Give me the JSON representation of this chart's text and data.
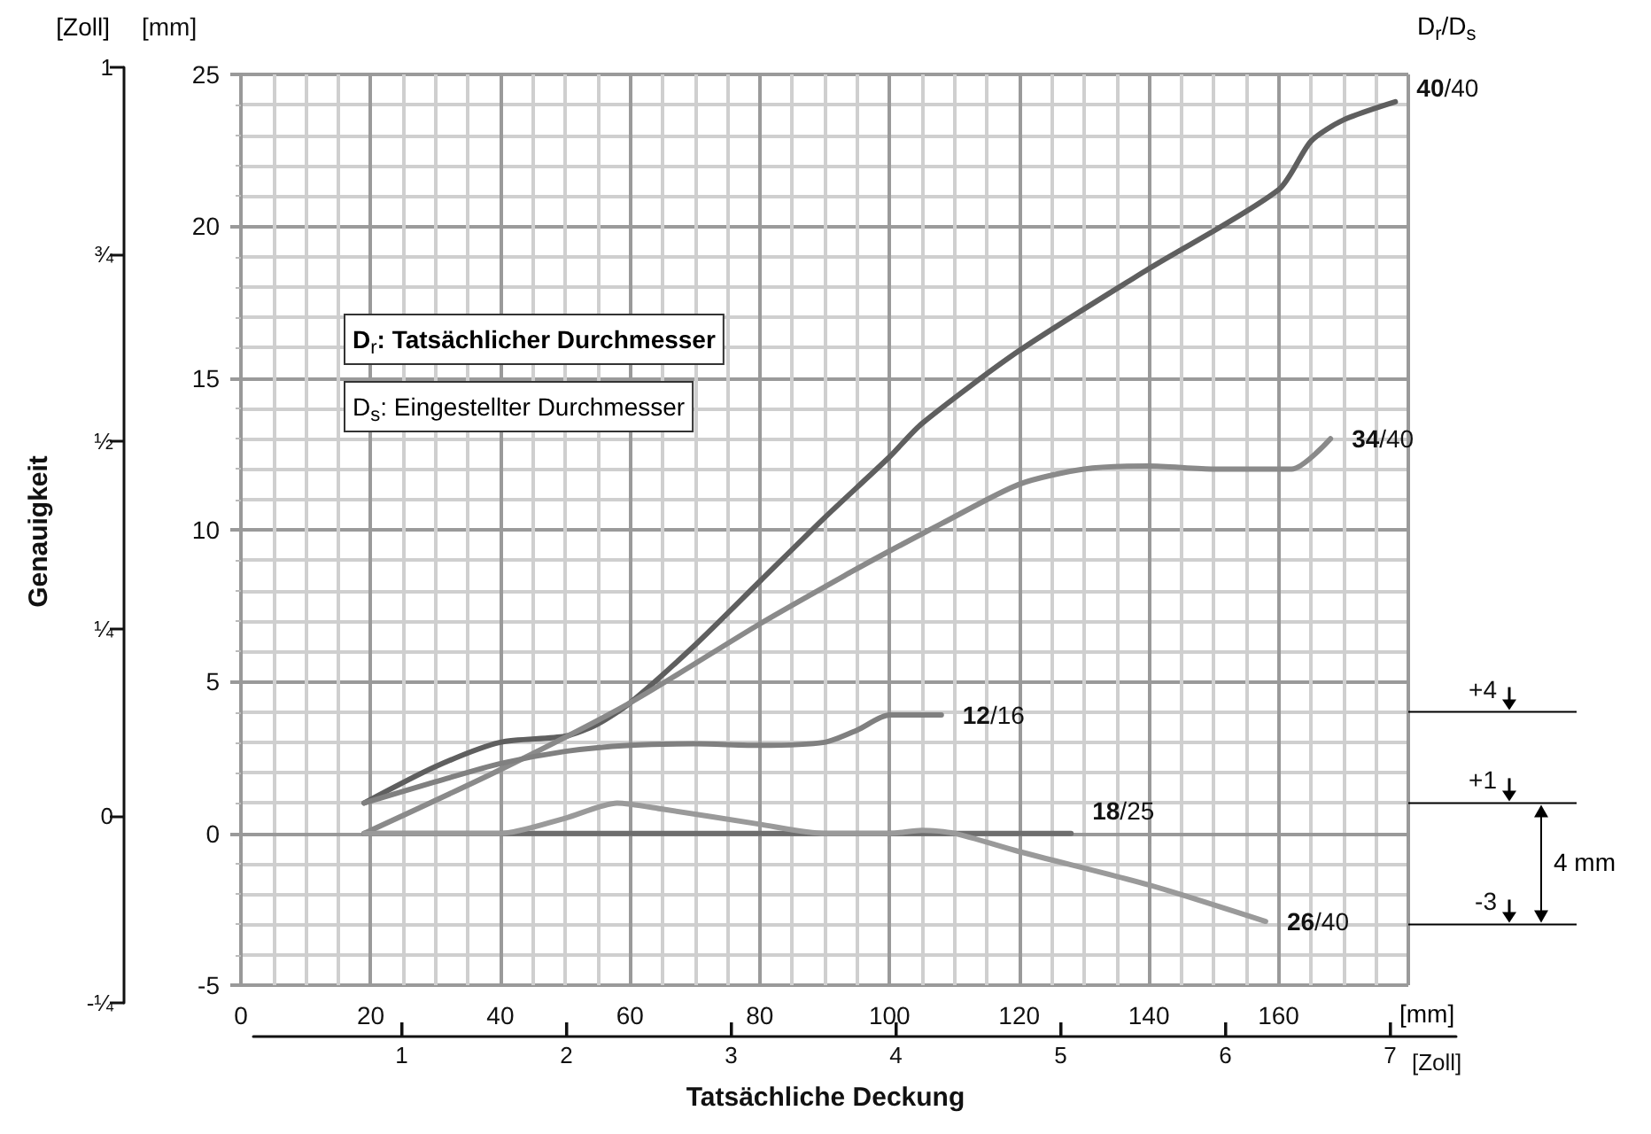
{
  "chart_data": {
    "type": "line",
    "xlabel": "Tatsächliche Deckung",
    "ylabel": "[mm]",
    "x2label": "[Zoll]",
    "y2label": "Genauigkeit",
    "xlim": [
      0,
      180
    ],
    "xticks": [
      0,
      20,
      40,
      60,
      80,
      100,
      120,
      140,
      160
    ],
    "ylim": [
      -5,
      25
    ],
    "yticks": [
      -5,
      0,
      5,
      10,
      15,
      20,
      25
    ],
    "x2lim": [
      0.1,
      7.4
    ],
    "x2ticks": [
      1,
      2,
      3,
      4,
      5,
      6,
      7
    ],
    "y2lim": [
      -0.25,
      1
    ],
    "y2ticks": [
      {
        "value": -0.25,
        "label": "-¼"
      },
      0,
      {
        "value": 0.25,
        "label": "¼"
      },
      {
        "value": 0.5,
        "label": "½"
      },
      {
        "value": 0.75,
        "label": "¾"
      },
      1
    ],
    "grid": true,
    "marker": "none",
    "line_style": "solid",
    "series": [
      {
        "name": "40/40",
        "color": "#5f5f5f",
        "x": [
          19,
          30,
          40,
          50,
          55,
          60,
          70,
          80,
          90,
          100,
          105,
          120,
          140,
          160,
          165,
          170,
          178
        ],
        "values": [
          1,
          2.2,
          3,
          3.2,
          3.6,
          4.3,
          6.2,
          8.3,
          10.4,
          12.4,
          13.5,
          15.9,
          18.6,
          21.2,
          22.8,
          23.5,
          24.1
        ]
      },
      {
        "name": "34/40",
        "color": "#8a8a8a",
        "x": [
          19,
          40,
          60,
          80,
          94,
          100,
          108,
          120,
          130,
          140,
          150,
          162,
          168
        ],
        "values": [
          0,
          2.1,
          4.3,
          6.9,
          8.6,
          9.3,
          10.2,
          11.5,
          12,
          12.1,
          12,
          12,
          13
        ]
      },
      {
        "name": "12/16",
        "color": "#808080",
        "x": [
          19,
          30,
          40,
          50,
          60,
          70,
          80,
          90,
          95,
          100,
          108
        ],
        "values": [
          1,
          1.7,
          2.3,
          2.7,
          2.9,
          2.95,
          2.9,
          3,
          3.4,
          3.9,
          3.9
        ]
      },
      {
        "name": "18/25",
        "color": "#6e6e6e",
        "x": [
          19,
          128
        ],
        "values": [
          0,
          0
        ]
      },
      {
        "name": "26/40",
        "color": "#9a9a9a",
        "x": [
          19,
          40,
          50,
          58,
          65,
          80,
          90,
          100,
          105,
          110,
          120,
          140,
          158
        ],
        "values": [
          0,
          0,
          0.5,
          1,
          0.8,
          0.3,
          0,
          0,
          0.1,
          0,
          -0.6,
          -1.7,
          -2.9
        ]
      }
    ],
    "ref_lines": [
      {
        "axis": "y",
        "value": 4,
        "label": "+4"
      },
      {
        "axis": "y",
        "value": 1,
        "label": "+1"
      },
      {
        "axis": "y",
        "value": -3,
        "label": "-3"
      }
    ],
    "annotations": [
      "[mm]",
      "[Zoll]",
      "D$_{r}$/D$_{s}$",
      "D$_{r}$: Tatsächlicher Durchmesser",
      "D$_{s}$: Eingestellter Durchmesser",
      "4 mm"
    ]
  }
}
